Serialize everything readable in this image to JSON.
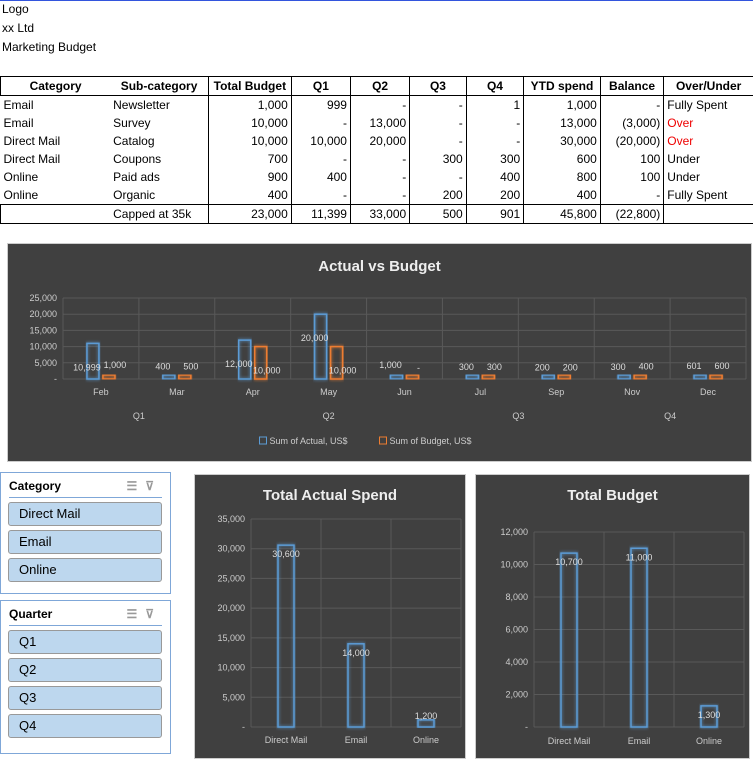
{
  "header": {
    "logo": "Logo",
    "company": "xx  Ltd",
    "title": "Marketing Budget"
  },
  "table": {
    "columns": [
      "Category",
      "Sub-category",
      "Total Budget",
      "Q1",
      "Q2",
      "Q3",
      "Q4",
      "YTD spend",
      "Balance",
      "Over/Under"
    ],
    "rows": [
      [
        "Email",
        "Newsletter",
        "1,000",
        "999",
        "-",
        "-",
        "1",
        "1,000",
        "-",
        "Fully Spent"
      ],
      [
        "Email",
        "Survey",
        "10,000",
        "-",
        "13,000",
        "-",
        "-",
        "13,000",
        "(3,000)",
        "Over"
      ],
      [
        "Direct Mail",
        "Catalog",
        "10,000",
        "10,000",
        "20,000",
        "-",
        "-",
        "30,000",
        "(20,000)",
        "Over"
      ],
      [
        "Direct Mail",
        "Coupons",
        "700",
        "-",
        "-",
        "300",
        "300",
        "600",
        "100",
        "Under"
      ],
      [
        "Online",
        "Paid ads",
        "900",
        "400",
        "-",
        "-",
        "400",
        "800",
        "100",
        "Under"
      ],
      [
        "Online",
        "Organic",
        "400",
        "-",
        "-",
        "200",
        "200",
        "400",
        "-",
        "Fully Spent"
      ]
    ],
    "total": [
      "",
      "Capped at 35k",
      "23,000",
      "11,399",
      "33,000",
      "500",
      "901",
      "45,800",
      "(22,800)",
      ""
    ]
  },
  "colors": {
    "actual": "#5b9bd5",
    "budget": "#ed7d31",
    "over": "#ff0000",
    "chart_bg": "#404040",
    "slicer_item": "#bdd7ee"
  },
  "chart_data": [
    {
      "type": "bar",
      "title": "Actual vs Budget",
      "ylim": [
        0,
        25000
      ],
      "yticks": [
        "-",
        "5,000",
        "10,000",
        "15,000",
        "20,000",
        "25,000"
      ],
      "categories": [
        "Feb",
        "Mar",
        "Apr",
        "May",
        "Jun",
        "Jul",
        "Sep",
        "Nov",
        "Dec"
      ],
      "groups": [
        {
          "label": "Q1",
          "span": 2
        },
        {
          "label": "Q2",
          "span": 3
        },
        {
          "label": "Q3",
          "span": 2
        },
        {
          "label": "Q4",
          "span": 2
        }
      ],
      "series": [
        {
          "name": "Sum of Actual, US$",
          "values": [
            10999,
            400,
            12000,
            20000,
            1000,
            300,
            200,
            300,
            601
          ],
          "labels": [
            "10,999",
            "400",
            "12,000",
            "20,000",
            "1,000",
            "300",
            "200",
            "300",
            "601"
          ]
        },
        {
          "name": "Sum of Budget, US$",
          "values": [
            1000,
            500,
            10000,
            10000,
            0,
            300,
            200,
            400,
            600
          ],
          "labels": [
            "1,000",
            "500",
            "10,000",
            "10,000",
            "-",
            "300",
            "200",
            "400",
            "600"
          ]
        }
      ],
      "legend": "bottom",
      "grid": true
    },
    {
      "type": "bar",
      "title": "Total Actual Spend",
      "ylim": [
        0,
        35000
      ],
      "yticks": [
        "-",
        "5,000",
        "10,000",
        "15,000",
        "20,000",
        "25,000",
        "30,000",
        "35,000"
      ],
      "categories": [
        "Direct Mail",
        "Email",
        "Online"
      ],
      "series": [
        {
          "values": [
            30600,
            14000,
            1200
          ],
          "labels": [
            "30,600",
            "14,000",
            "1,200"
          ]
        }
      ],
      "grid": true
    },
    {
      "type": "bar",
      "title": "Total Budget",
      "ylim": [
        0,
        12000
      ],
      "yticks": [
        "-",
        "2,000",
        "4,000",
        "6,000",
        "8,000",
        "10,000",
        "12,000"
      ],
      "categories": [
        "Direct Mail",
        "Email",
        "Online"
      ],
      "series": [
        {
          "values": [
            10700,
            11000,
            1300
          ],
          "labels": [
            "10,700",
            "11,000",
            "1,300"
          ]
        }
      ],
      "grid": true
    }
  ],
  "slicers": [
    {
      "title": "Category",
      "items": [
        "Direct Mail",
        "Email",
        "Online"
      ]
    },
    {
      "title": "Quarter",
      "items": [
        "Q1",
        "Q2",
        "Q3",
        "Q4"
      ]
    }
  ]
}
